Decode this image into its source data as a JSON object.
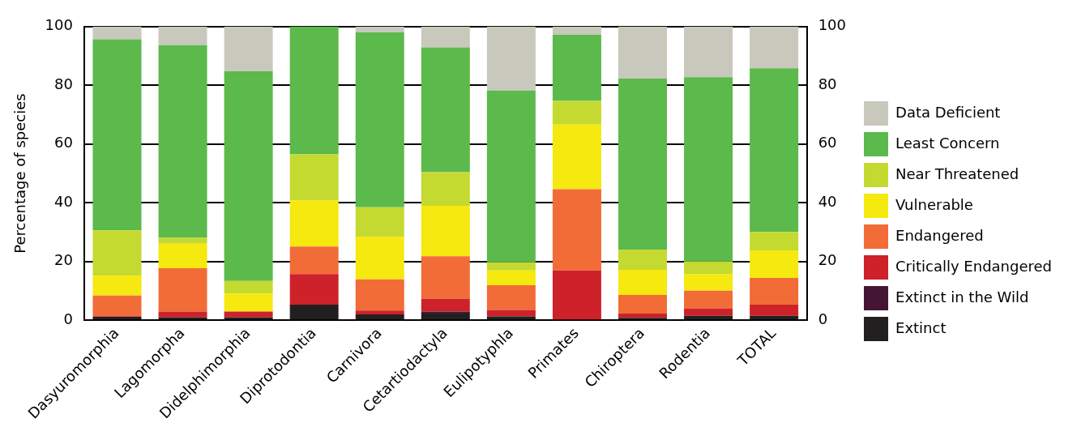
{
  "chart_data": {
    "type": "bar",
    "stacked": true,
    "ylabel": "Percentage of species",
    "categories": [
      "Dasyuromorphia",
      "Lagomorpha",
      "Didelphimorphia",
      "Diprotodontia",
      "Carnivora",
      "Cetartiodactyla",
      "Eulipotyphla",
      "Primates",
      "Chiroptera",
      "Rodentia",
      "TOTAL"
    ],
    "series": [
      {
        "name": "Extinct",
        "color": "#221f20",
        "values": [
          1.2,
          1.0,
          1.0,
          5.3,
          2.0,
          2.3,
          1.3,
          0.3,
          0.8,
          1.5,
          1.5
        ]
      },
      {
        "name": "Extinct in the Wild",
        "color": "#451634",
        "values": [
          0,
          0,
          0,
          0,
          0,
          0.7,
          0,
          0,
          0,
          0,
          0
        ]
      },
      {
        "name": "Critically Endangered",
        "color": "#cd2229",
        "values": [
          0.2,
          2.0,
          2.0,
          10.4,
          1.3,
          4.3,
          2.2,
          16.7,
          1.5,
          2.6,
          3.8
        ]
      },
      {
        "name": "Endangered",
        "color": "#f26c38",
        "values": [
          7.0,
          14.7,
          0,
          9.4,
          10.6,
          14.5,
          8.4,
          27.6,
          6.3,
          6.0,
          9.1
        ]
      },
      {
        "name": "Vulnerable",
        "color": "#f5e90f",
        "values": [
          6.8,
          8.4,
          6.1,
          15.7,
          14.5,
          17.2,
          5.1,
          22.0,
          8.6,
          5.6,
          9.4
        ]
      },
      {
        "name": "Near Threatened",
        "color": "#c4da30",
        "values": [
          15.4,
          2.0,
          4.3,
          15.7,
          10.1,
          11.4,
          2.7,
          8.1,
          6.9,
          4.3,
          6.3
        ]
      },
      {
        "name": "Least Concern",
        "color": "#5cb94b",
        "values": [
          65.1,
          65.6,
          71.4,
          43.5,
          59.5,
          42.5,
          58.5,
          22.5,
          58.2,
          62.8,
          55.7
        ]
      },
      {
        "name": "Data Deficient",
        "color": "#c8c8bc",
        "values": [
          4.3,
          6.3,
          15.2,
          0,
          2.0,
          7.1,
          21.8,
          2.8,
          17.7,
          17.2,
          14.2
        ]
      }
    ],
    "ylim": [
      0,
      100
    ],
    "yticks": [
      0,
      20,
      40,
      60,
      80,
      100
    ],
    "y2lim": [
      0,
      100
    ],
    "y2ticks": [
      0,
      20,
      40,
      60,
      80,
      100
    ],
    "grid": "y",
    "legend": "right"
  }
}
